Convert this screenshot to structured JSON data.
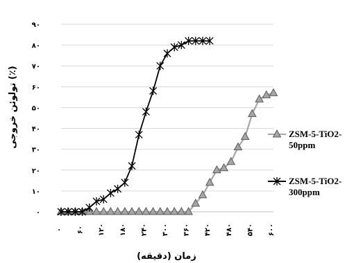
{
  "chart_data": {
    "type": "line",
    "x": [
      "۰",
      "۲۰",
      "۴۰",
      "۶۰",
      "۸۰",
      "۱۰۰",
      "۱۲۰",
      "۱۴۰",
      "۱۶۰",
      "۱۸۰",
      "۲۰۰",
      "۲۲۰",
      "۲۴۰",
      "۲۶۰",
      "۲۸۰",
      "۳۰۰",
      "۳۲۰",
      "۳۴۰",
      "۳۶۰",
      "۳۸۰",
      "۴۰۰",
      "۴۲۰",
      "۴۴۰",
      "۴۶۰",
      "۴۸۰",
      "۵۰۰",
      "۵۲۰",
      "۵۴۰",
      "۵۶۰",
      "۵۸۰",
      "۶۰۰"
    ],
    "x_tick_labels": [
      "۰",
      "۶۰",
      "۱۲۰",
      "۱۸۰",
      "۲۴۰",
      "۳۰۰",
      "۳۶۰",
      "۴۲۰",
      "۴۸۰",
      "۵۴۰",
      "۶۰۰"
    ],
    "y_tick_labels": [
      "۰",
      "۱۰",
      "۲۰",
      "۳۰",
      "۴۰",
      "۵۰",
      "۶۰",
      "۷۰",
      "۸۰",
      "۹۰"
    ],
    "ylim": [
      0,
      90
    ],
    "xlabel": "زمان (دقیقه)",
    "ylabel": "تولوئن خروجی (٪)",
    "grid": true,
    "legend_position": "right",
    "series": [
      {
        "name": "ZSM-5-TiO2-50ppm",
        "marker": "triangle",
        "color": "#a6a6a6",
        "marker_fill": "#a6a6a6",
        "values": [
          0,
          0,
          0,
          0,
          0,
          0,
          0,
          0,
          0,
          0,
          0,
          0,
          0,
          0,
          0,
          0,
          0,
          0,
          0,
          4,
          8,
          14,
          20,
          21,
          24,
          31,
          36,
          47,
          54,
          56,
          57
        ]
      },
      {
        "name": "ZSM-5-TiO2-300ppm",
        "marker": "asterisk",
        "color": "#000000",
        "marker_fill": "#000000",
        "values": [
          0,
          0,
          0,
          0,
          2,
          5,
          6,
          9,
          11,
          14,
          22,
          37,
          48,
          58,
          70,
          76,
          79,
          80,
          82,
          82,
          82,
          82,
          null,
          null,
          null,
          null,
          null,
          null,
          null,
          null,
          null
        ]
      }
    ]
  }
}
